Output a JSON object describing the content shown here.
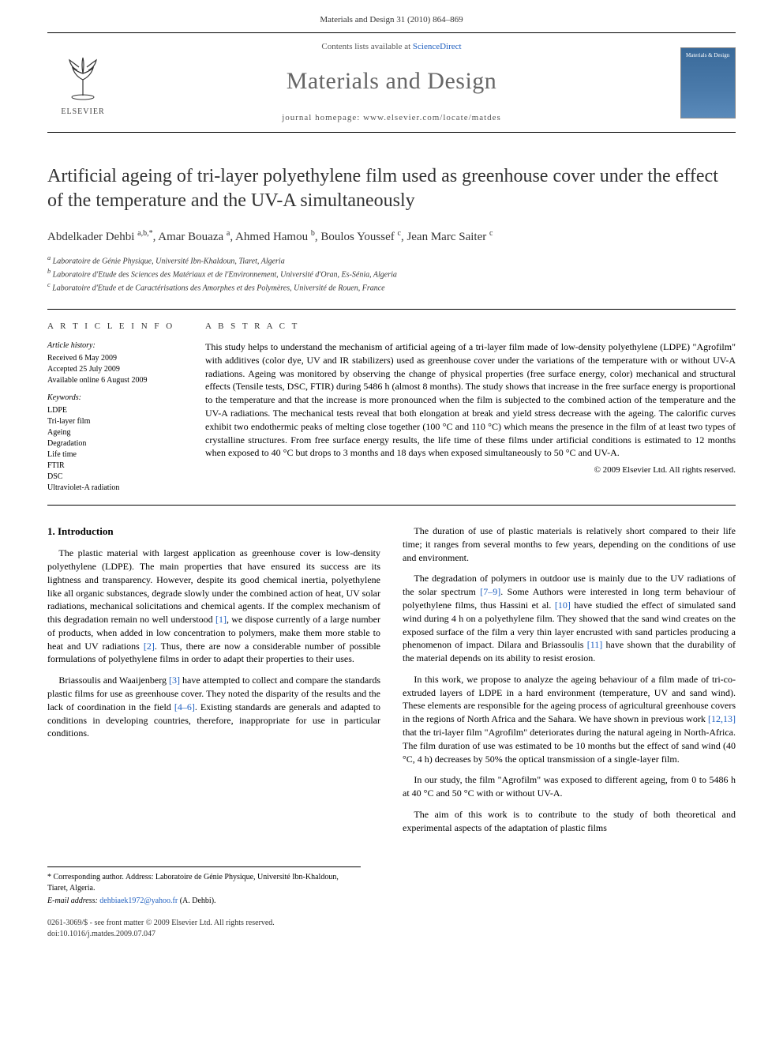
{
  "header": {
    "citation": "Materials and Design 31 (2010) 864–869",
    "contents_prefix": "Contents lists available at ",
    "contents_link": "ScienceDirect",
    "journal_name": "Materials and Design",
    "homepage_prefix": "journal homepage: ",
    "homepage_url": "www.elsevier.com/locate/matdes",
    "publisher_label": "ELSEVIER",
    "cover_text": "Materials & Design"
  },
  "article": {
    "title": "Artificial ageing of tri-layer polyethylene film used as greenhouse cover under the effect of the temperature and the UV-A simultaneously",
    "authors_html": "Abdelkader Dehbi <sup>a,b,*</sup>, Amar Bouaza <sup>a</sup>, Ahmed Hamou <sup>b</sup>, Boulos Youssef <sup>c</sup>, Jean Marc Saiter <sup>c</sup>",
    "affiliations": [
      "a Laboratoire de Génie Physique, Université Ibn-Khaldoun, Tiaret, Algeria",
      "b Laboratoire d'Etude des Sciences des Matériaux et de l'Environnement, Université d'Oran, Es-Sénia, Algeria",
      "c Laboratoire d'Etude et de Caractérisations des Amorphes et des Polymères, Université de Rouen, France"
    ]
  },
  "info": {
    "heading": "A R T I C L E   I N F O",
    "history_heading": "Article history:",
    "history": [
      "Received 6 May 2009",
      "Accepted 25 July 2009",
      "Available online 6 August 2009"
    ],
    "keywords_heading": "Keywords:",
    "keywords": [
      "LDPE",
      "Tri-layer film",
      "Ageing",
      "Degradation",
      "Life time",
      "FTIR",
      "DSC",
      "Ultraviolet-A radiation"
    ]
  },
  "abstract": {
    "heading": "A B S T R A C T",
    "text": "This study helps to understand the mechanism of artificial ageing of a tri-layer film made of low-density polyethylene (LDPE) \"Agrofilm\" with additives (color dye, UV and IR stabilizers) used as greenhouse cover under the variations of the temperature with or without UV-A radiations. Ageing was monitored by observing the change of physical properties (free surface energy, color) mechanical and structural effects (Tensile tests, DSC, FTIR) during 5486 h (almost 8 months). The study shows that increase in the free surface energy is proportional to the temperature and that the increase is more pronounced when the film is subjected to the combined action of the temperature and the UV-A radiations. The mechanical tests reveal that both elongation at break and yield stress decrease with the ageing. The calorific curves exhibit two endothermic peaks of melting close together (100 °C and 110 °C) which means the presence in the film of at least two types of crystalline structures. From free surface energy results, the life time of these films under artificial conditions is estimated to 12 months when exposed to 40 °C but drops to 3 months and 18 days when exposed simultaneously to 50 °C and UV-A.",
    "copyright": "© 2009 Elsevier Ltd. All rights reserved."
  },
  "body": {
    "section_heading": "1. Introduction",
    "left_paragraphs": [
      "The plastic material with largest application as greenhouse cover is low-density polyethylene (LDPE). The main properties that have ensured its success are its lightness and transparency. However, despite its good chemical inertia, polyethylene like all organic substances, degrade slowly under the combined action of heat, UV solar radiations, mechanical solicitations and chemical agents. If the complex mechanism of this degradation remain no well understood [1], we dispose currently of a large number of products, when added in low concentration to polymers, make them more stable to heat and UV radiations [2]. Thus, there are now a considerable number of possible formulations of polyethylene films in order to adapt their properties to their uses.",
      "Briassoulis and Waaijenberg [3] have attempted to collect and compare the standards plastic films for use as greenhouse cover. They noted the disparity of the results and the lack of coordination in the field [4–6]. Existing standards are generals and adapted to conditions in developing countries, therefore, inappropriate for use in particular conditions."
    ],
    "right_paragraphs": [
      "The duration of use of plastic materials is relatively short compared to their life time; it ranges from several months to few years, depending on the conditions of use and environment.",
      "The degradation of polymers in outdoor use is mainly due to the UV radiations of the solar spectrum [7–9]. Some Authors were interested in long term behaviour of polyethylene films, thus Hassini et al. [10] have studied the effect of simulated sand wind during 4 h on a polyethylene film. They showed that the sand wind creates on the exposed surface of the film a very thin layer encrusted with sand particles producing a phenomenon of impact. Dilara and Briassoulis [11] have shown that the durability of the material depends on its ability to resist erosion.",
      "In this work, we propose to analyze the ageing behaviour of a film made of tri-co-extruded layers of LDPE in a hard environment (temperature, UV and sand wind). These elements are responsible for the ageing process of agricultural greenhouse covers in the regions of North Africa and the Sahara. We have shown in previous work [12,13] that the tri-layer film \"Agrofilm\" deteriorates during the natural ageing in North-Africa. The film duration of use was estimated to be 10 months but the effect of sand wind (40 °C, 4 h) decreases by 50% the optical transmission of a single-layer film.",
      "In our study, the film \"Agrofilm\" was exposed to different ageing, from 0 to 5486 h at 40 °C and 50 °C with or without UV-A.",
      "The aim of this work is to contribute to the study of both theoretical and experimental aspects of the adaptation of plastic films"
    ]
  },
  "footnote": {
    "corresponding": "* Corresponding author. Address: Laboratoire de Génie Physique, Université Ibn-Khaldoun, Tiaret, Algeria.",
    "email_label": "E-mail address: ",
    "email": "dehbiaek1972@yahoo.fr",
    "email_suffix": " (A. Dehbi)."
  },
  "footer": {
    "line1": "0261-3069/$ - see front matter © 2009 Elsevier Ltd. All rights reserved.",
    "line2": "doi:10.1016/j.matdes.2009.07.047"
  },
  "colors": {
    "link": "#2060c0",
    "text": "#000000",
    "muted": "#555555",
    "cover_bg_top": "#3a6a9a",
    "cover_bg_bot": "#5a8aba"
  }
}
